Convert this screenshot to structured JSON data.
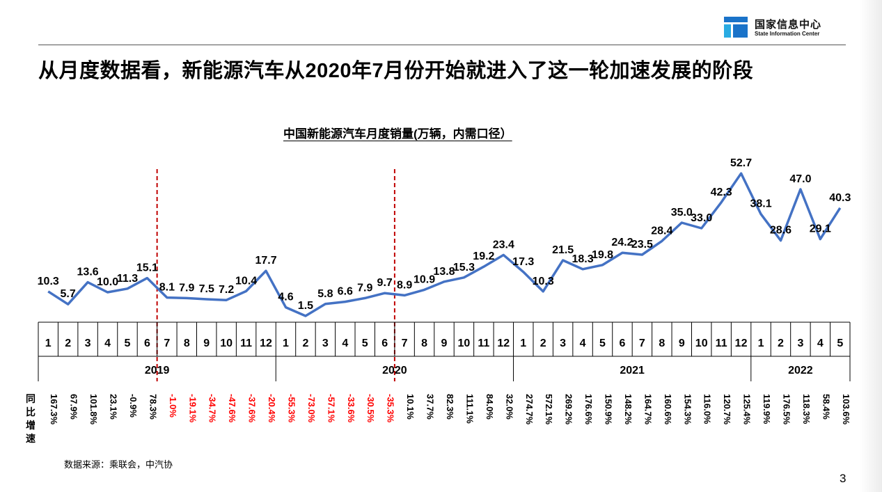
{
  "header": {
    "logo_cn": "国家信息中心",
    "logo_en": "State Information Center",
    "logo_colors": [
      "#1a73c9",
      "#29abe2"
    ]
  },
  "slide_title": "从月度数据看，新能源汽车从2020年7月份开始就进入了这一轮加速发展的阶段",
  "footer": {
    "source": "数据来源：乘联会，中汽协",
    "page_number": "3"
  },
  "chart_data": {
    "type": "line",
    "title": "中国新能源汽车月度销量(万辆，内需口径）",
    "series": [
      {
        "values": [
          10.3,
          5.7,
          13.6,
          10.0,
          11.3,
          15.1,
          8.1,
          7.9,
          7.5,
          7.2,
          10.4,
          17.7,
          4.6,
          1.5,
          5.8,
          6.6,
          7.9,
          9.7,
          8.9,
          10.9,
          13.8,
          15.3,
          19.2,
          23.4,
          17.3,
          10.3,
          21.5,
          18.3,
          19.8,
          24.2,
          23.5,
          28.4,
          35.0,
          33.0,
          42.3,
          52.7,
          38.1,
          28.6,
          47.0,
          29.1,
          40.3
        ]
      }
    ],
    "data_labels": [
      "10.3",
      "5.7",
      "13.6",
      "10.0",
      "11.3",
      "15.1",
      "8.1",
      "7.9",
      "7.5",
      "7.2",
      "10.4",
      "17.7",
      "4.6",
      "1.5",
      "5.8",
      "6.6",
      "7.9",
      "9.7",
      "8.9",
      "10.9",
      "13.8",
      "15.3",
      "19.2",
      "23.4",
      "17.3",
      "10.3",
      "21.5",
      "18.3",
      "19.8",
      "24.2",
      "23.5",
      "28.4",
      "35.0",
      "33.0",
      "42.3",
      "52.7",
      "38.1",
      "28.6",
      "47.0",
      "29.1",
      "40.3"
    ],
    "months": [
      "1",
      "2",
      "3",
      "4",
      "5",
      "6",
      "7",
      "8",
      "9",
      "10",
      "11",
      "12",
      "1",
      "2",
      "3",
      "4",
      "5",
      "6",
      "7",
      "8",
      "9",
      "10",
      "11",
      "12",
      "1",
      "2",
      "3",
      "4",
      "5",
      "6",
      "7",
      "8",
      "9",
      "10",
      "11",
      "12",
      "1",
      "2",
      "3",
      "4",
      "5"
    ],
    "years": [
      {
        "label": "2019",
        "start": 0,
        "count": 12
      },
      {
        "label": "2020",
        "start": 12,
        "count": 12
      },
      {
        "label": "2021",
        "start": 24,
        "count": 12
      },
      {
        "label": "2022",
        "start": 36,
        "count": 5
      }
    ],
    "yoy_label": "同比增速",
    "yoy": [
      "167.3%",
      "67.9%",
      "101.8%",
      "23.1%",
      "-0.9%",
      "78.3%",
      "-1.0%",
      "-19.1%",
      "-34.7%",
      "-47.6%",
      "-37.6%",
      "-20.4%",
      "-55.3%",
      "-73.0%",
      "-57.1%",
      "-33.6%",
      "-30.5%",
      "-35.3%",
      "10.1%",
      "37.7%",
      "82.3%",
      "111.1%",
      "84.0%",
      "32.0%",
      "274.7%",
      "572.1%",
      "269.2%",
      "176.6%",
      "150.9%",
      "148.2%",
      "164.7%",
      "160.6%",
      "154.3%",
      "116.0%",
      "120.7%",
      "125.4%",
      "119.9%",
      "176.5%",
      "118.3%",
      "58.4%",
      "103.6%"
    ],
    "yoy_negative_red": [
      6,
      7,
      8,
      9,
      10,
      11,
      12,
      13,
      14,
      15,
      16,
      17
    ],
    "dashed_markers_after_month_index": [
      5,
      17
    ],
    "colors": {
      "line": "#4472c4",
      "marker": "#c00000",
      "negative": "#ff0000",
      "text": "#000000"
    },
    "ylim": [
      0,
      55
    ],
    "grid": false,
    "legend": "none"
  }
}
